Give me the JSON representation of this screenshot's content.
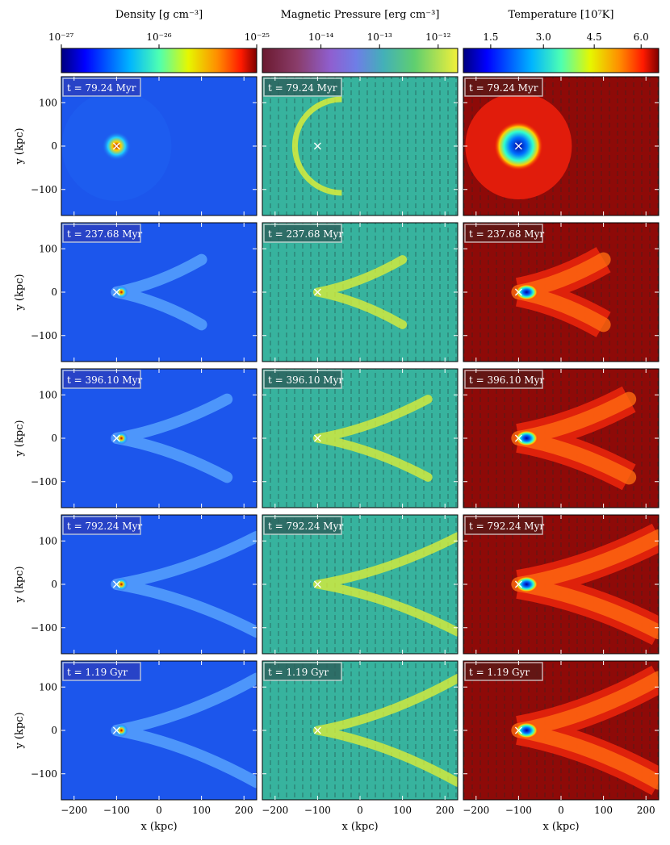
{
  "colorbars": [
    {
      "label": "Density [g cm⁻³]",
      "ticks": [
        "10⁻²⁷",
        "10⁻²⁶",
        "10⁻²⁵"
      ],
      "colormap": "jet",
      "scale": "log",
      "range": [
        1e-27,
        1e-25
      ]
    },
    {
      "label": "Magnetic Pressure [erg cm⁻³]",
      "ticks": [
        "10⁻¹⁴",
        "10⁻¹³",
        "10⁻¹²"
      ],
      "colormap": "plasma-viridis",
      "scale": "log"
    },
    {
      "label": "Temperature [10⁷K]",
      "ticks": [
        "1.5",
        "3.0",
        "4.5",
        "6.0"
      ],
      "colormap": "jet",
      "scale": "linear"
    }
  ],
  "time_labels": [
    "t = 79.24 Myr",
    "t = 237.68 Myr",
    "t = 396.10 Myr",
    "t = 792.24 Myr",
    "t = 1.19 Gyr"
  ],
  "axes": {
    "xlabel": "x  (kpc)",
    "ylabel": "y  (kpc)",
    "xticks": [
      "−200",
      "−100",
      "0",
      "100",
      "200"
    ],
    "yticks": [
      "100",
      "0",
      "−100"
    ],
    "xlim": [
      -230,
      230
    ],
    "ylim": [
      -160,
      160
    ]
  },
  "chart_data": {
    "type": "heatmap",
    "rows": 5,
    "columns": 3,
    "xlim": [
      -230,
      230
    ],
    "ylim": [
      -160,
      160
    ],
    "marker_position": [
      -100,
      0
    ],
    "panel_colors": {
      "density_background": "#1c56ec",
      "magnetic_background": "#37b39e",
      "temperature_background": "#8e0a08"
    }
  }
}
